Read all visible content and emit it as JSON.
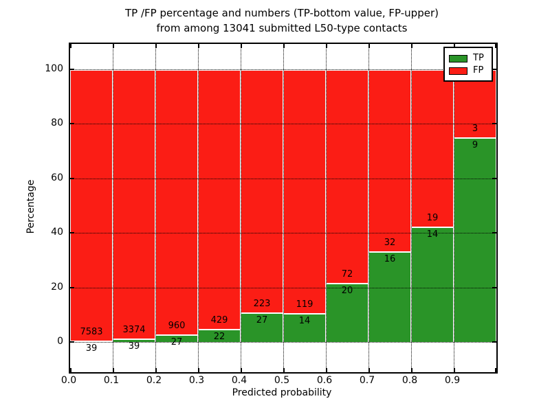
{
  "chart_data": {
    "type": "bar",
    "stacked": true,
    "title_line1": "TP /FP percentage and numbers (TP-bottom value, FP-upper)",
    "title_line2": "from among 13041 submitted L50-type contacts",
    "xlabel": "Predicted probability",
    "ylabel": "Percentage",
    "total_contacts": 13041,
    "x_ticks": [
      0.0,
      0.1,
      0.2,
      0.3,
      0.4,
      0.5,
      0.6,
      0.7,
      0.8,
      0.9
    ],
    "x_tick_labels": [
      "0.0",
      "0.1",
      "0.2",
      "0.3",
      "0.4",
      "0.5",
      "0.6",
      "0.7",
      "0.8",
      "0.9"
    ],
    "y_ticks": [
      0,
      20,
      40,
      60,
      80,
      100
    ],
    "y_tick_labels": [
      "0",
      "20",
      "40",
      "60",
      "80",
      "100"
    ],
    "ylim": [
      -10.8,
      109.6
    ],
    "xlim": [
      0.0,
      1.0
    ],
    "grid": true,
    "bins": [
      {
        "range": "0.0-0.1",
        "tp": 39,
        "fp": 7583
      },
      {
        "range": "0.1-0.2",
        "tp": 39,
        "fp": 3374
      },
      {
        "range": "0.2-0.3",
        "tp": 27,
        "fp": 960
      },
      {
        "range": "0.3-0.4",
        "tp": 22,
        "fp": 429
      },
      {
        "range": "0.4-0.5",
        "tp": 27,
        "fp": 223
      },
      {
        "range": "0.5-0.6",
        "tp": 14,
        "fp": 119
      },
      {
        "range": "0.6-0.7",
        "tp": 20,
        "fp": 72
      },
      {
        "range": "0.7-0.8",
        "tp": 16,
        "fp": 32
      },
      {
        "range": "0.8-0.9",
        "tp": 14,
        "fp": 19
      },
      {
        "range": "0.9-1.0",
        "tp": 9,
        "fp": 3
      }
    ],
    "series_note": "bar height = tp/(tp+fp)*100 for TP (bottom, green); remainder to 100% is FP (top, red)",
    "legend": {
      "position": "upper right",
      "entries": [
        {
          "label": "TP",
          "color": "#2a9428"
        },
        {
          "label": "FP",
          "color": "#fb1d15"
        }
      ]
    }
  }
}
